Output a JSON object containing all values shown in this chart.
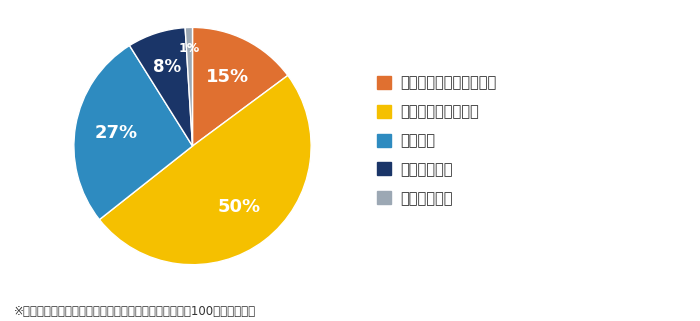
{
  "slices": [
    15,
    50,
    27,
    8,
    1
  ],
  "labels": [
    "内容を含めて知っている",
    "名称だけ知っている",
    "知らない",
    "全く知らない",
    "わかりづらい"
  ],
  "pct_labels": [
    "15%",
    "50%",
    "27%",
    "8%",
    "1%"
  ],
  "colors": [
    "#E07030",
    "#F5C000",
    "#2E8BC0",
    "#1A3568",
    "#9CA8B4"
  ],
  "legend_labels": [
    "内容を含めて知っている",
    "名称だけ知っている",
    "知らない",
    "全く知らない",
    "わかりづらい"
  ],
  "footnote": "※小数点以下を四捨五入しているため、必ずしも合計が100にならない。",
  "start_angle": 90,
  "text_color": "#333333",
  "bg_color": "#ffffff",
  "label_color_white": [
    "内容を含めて知っている",
    "名称だけ知っている",
    "知らない",
    "全く知らない",
    "わかりづらい"
  ],
  "pct_fontsize": 13,
  "legend_fontsize": 10.5
}
